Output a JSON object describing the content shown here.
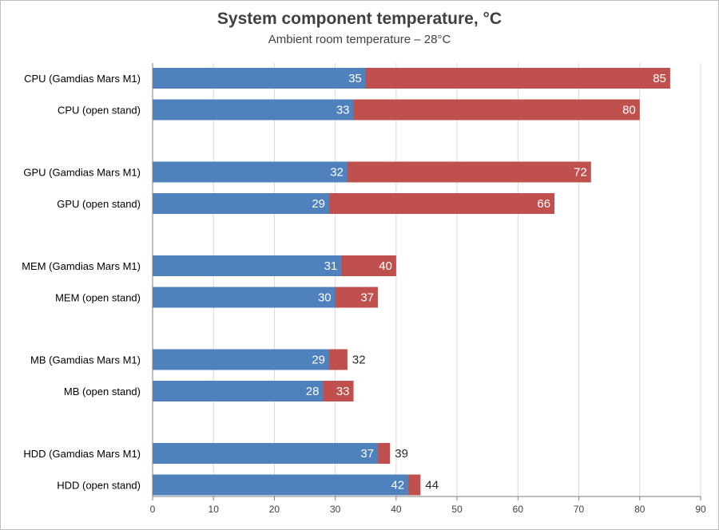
{
  "chart_data": {
    "type": "bar",
    "orientation": "horizontal",
    "stacked": false,
    "title": "System component temperature, °C",
    "subtitle": "Ambient room temperature – 28°C",
    "categories": [
      "CPU (Gamdias Mars M1)",
      "CPU (open stand)",
      "GPU (Gamdias Mars M1)",
      "GPU (open stand)",
      "MEM (Gamdias Mars M1)",
      "MEM (open stand)",
      "MB (Gamdias Mars M1)",
      "MB (open stand)",
      "HDD (Gamdias Mars M1)",
      "HDD (open stand)"
    ],
    "series": [
      {
        "values": [
          35,
          33,
          32,
          29,
          31,
          30,
          29,
          28,
          37,
          42
        ],
        "color": "#4f81bd"
      },
      {
        "values": [
          85,
          80,
          72,
          66,
          40,
          37,
          32,
          33,
          39,
          44
        ],
        "color": "#c0504d"
      }
    ],
    "xlim": [
      0,
      90
    ],
    "xticks": [
      "0",
      "10",
      "20",
      "30",
      "40",
      "50",
      "60",
      "70",
      "80",
      "90"
    ],
    "grid": true,
    "legend": "none"
  }
}
